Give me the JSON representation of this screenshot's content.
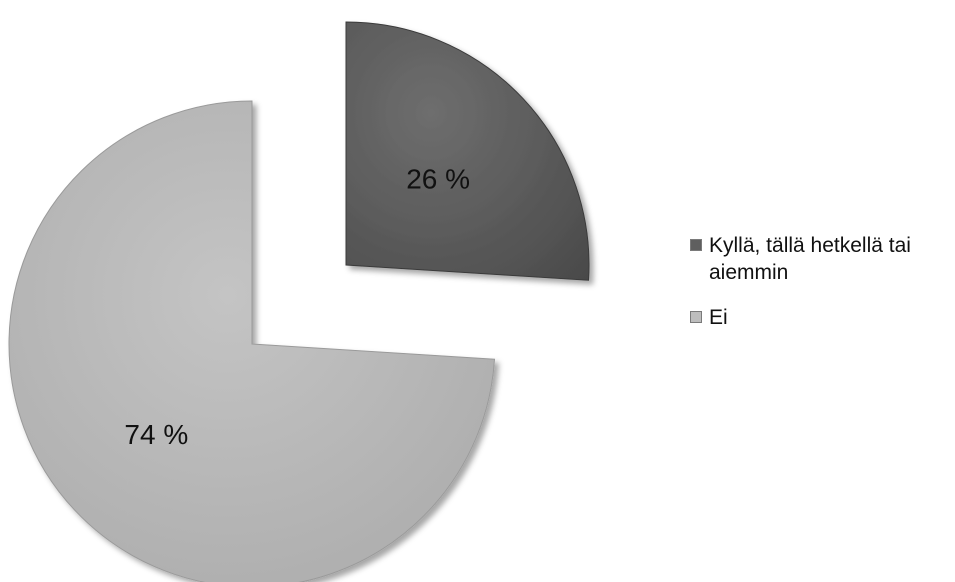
{
  "chart_data": {
    "type": "pie",
    "exploded": true,
    "slices": [
      {
        "label": "Kyllä, tällä hetkellä tai aiemmin",
        "value": 26,
        "data_label": "26 %",
        "color": "#5f5f5f"
      },
      {
        "label": "Ei",
        "value": 74,
        "data_label": "74 %",
        "color": "#bdbdbd"
      }
    ],
    "legend_position": "right"
  }
}
